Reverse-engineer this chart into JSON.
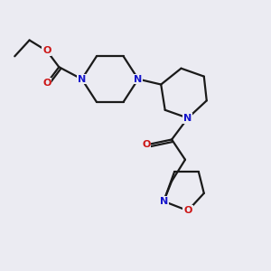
{
  "bg_color": "#ebebf2",
  "bond_color": "#1a1a1a",
  "N_color": "#1515cc",
  "O_color": "#cc1515",
  "font_size_atom": 8.0,
  "line_width": 1.6,
  "figsize": [
    3.0,
    3.0
  ],
  "dpi": 100,
  "xlim": [
    0,
    10
  ],
  "ylim": [
    0,
    10
  ]
}
